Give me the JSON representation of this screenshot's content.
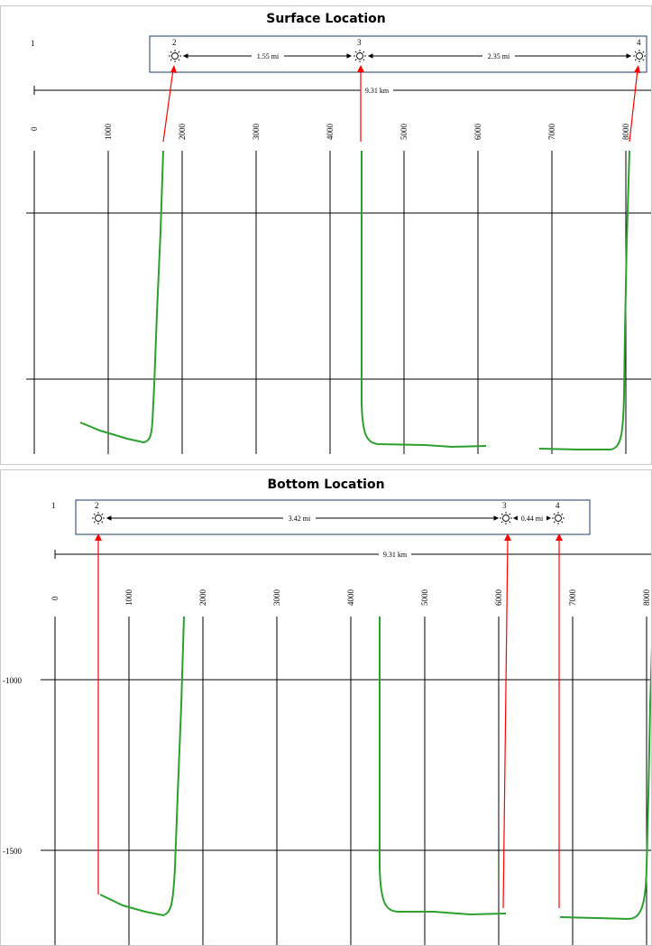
{
  "panels": [
    {
      "title": "Surface Location",
      "box_left_label": "1",
      "wells": [
        "2",
        "3",
        "4"
      ],
      "distances": [
        "1.55 mi",
        "2.35 mi"
      ],
      "total_distance": "9.31 km",
      "x_ticks": [
        "0",
        "1000",
        "2000",
        "3000",
        "4000",
        "5000",
        "6000",
        "7000",
        "8000"
      ],
      "depth_labels": []
    },
    {
      "title": "Bottom Location",
      "box_left_label": "1",
      "wells": [
        "2",
        "3",
        "4"
      ],
      "distances": [
        "3.42 mi",
        "0.44 mi"
      ],
      "total_distance": "9.31 km",
      "x_ticks": [
        "0",
        "1000",
        "2000",
        "3000",
        "4000",
        "5000",
        "6000",
        "7000",
        "8000"
      ],
      "depth_labels": [
        "-1000",
        "-1500"
      ]
    }
  ],
  "colors": {
    "trace": "#2ca02c",
    "pointer": "#ff0000",
    "box_border": "#1f3b6e"
  },
  "icons": {
    "well": "sun-icon"
  }
}
